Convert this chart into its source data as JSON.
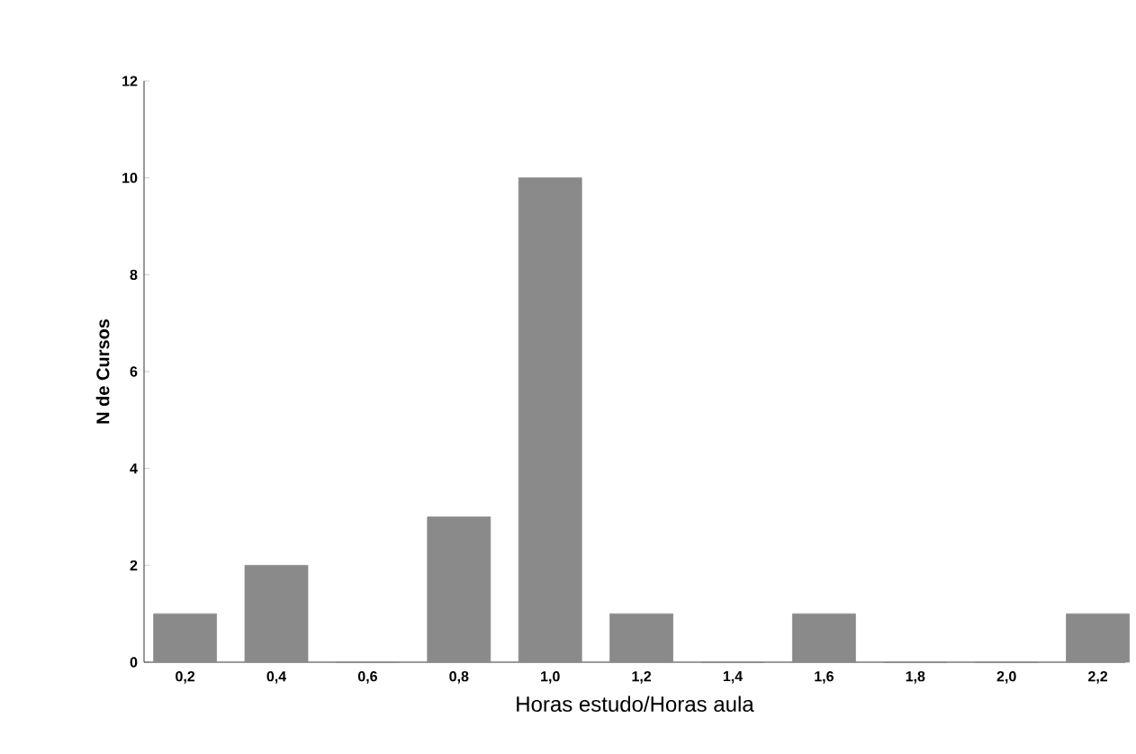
{
  "chart_data": {
    "type": "bar",
    "xlabel": "Horas estudo/Horas aula",
    "ylabel": "N de Cursos",
    "categories": [
      "0,2",
      "0,4",
      "0,6",
      "0,8",
      "1,0",
      "1,2",
      "1,4",
      "1,6",
      "1,8",
      "2,0",
      "2,2"
    ],
    "values": [
      1,
      2,
      0,
      3,
      10,
      1,
      0,
      1,
      0,
      0,
      1
    ],
    "color": "#8a8a8a",
    "ylim": [
      0,
      12
    ],
    "yticks": [
      0,
      2,
      4,
      6,
      8,
      10,
      12
    ],
    "grid": false
  }
}
